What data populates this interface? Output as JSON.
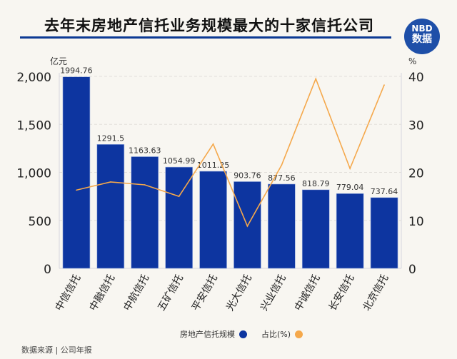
{
  "title": "去年末房地产信托业务规模最大的十家信托公司",
  "logo": {
    "line1": "NBD",
    "line2": "数据"
  },
  "source": "数据来源 | 公司年报",
  "colors": {
    "bar": "#0d35a0",
    "line": "#f5a84b",
    "rule": "#0d3a94"
  },
  "chart_data": {
    "type": "bar+line",
    "title": "去年末房地产信托业务规模最大的十家信托公司",
    "categories": [
      "中信信托",
      "中融信托",
      "中航信托",
      "五矿信托",
      "平安信托",
      "光大信托",
      "兴业信托",
      "中诚信托",
      "长安信托",
      "北京信托"
    ],
    "series": [
      {
        "name": "房地产信托规模",
        "type": "bar",
        "axis": "left",
        "values": [
          1994.76,
          1291.5,
          1163.63,
          1054.99,
          1011.25,
          903.76,
          877.56,
          818.79,
          779.04,
          737.64
        ],
        "labels": [
          "1994.76",
          "1291.5",
          "1163.63",
          "1054.99",
          "1011.25",
          "903.76",
          "877.56",
          "818.79",
          "779.04",
          "737.64"
        ]
      },
      {
        "name": "占比(%)",
        "type": "line",
        "axis": "right",
        "values": [
          16.3,
          18.0,
          17.4,
          15.0,
          25.9,
          8.8,
          21.5,
          39.5,
          20.8,
          38.2
        ]
      }
    ],
    "y_left": {
      "unit": "亿元",
      "range": [
        0,
        2000
      ],
      "ticks": [
        "0",
        "500",
        "1,000",
        "1,500",
        "2,000"
      ]
    },
    "y_right": {
      "unit": "%",
      "range": [
        0,
        40
      ],
      "ticks": [
        "0",
        "10",
        "20",
        "30",
        "40"
      ]
    },
    "grid": true,
    "legend_position": "bottom"
  }
}
